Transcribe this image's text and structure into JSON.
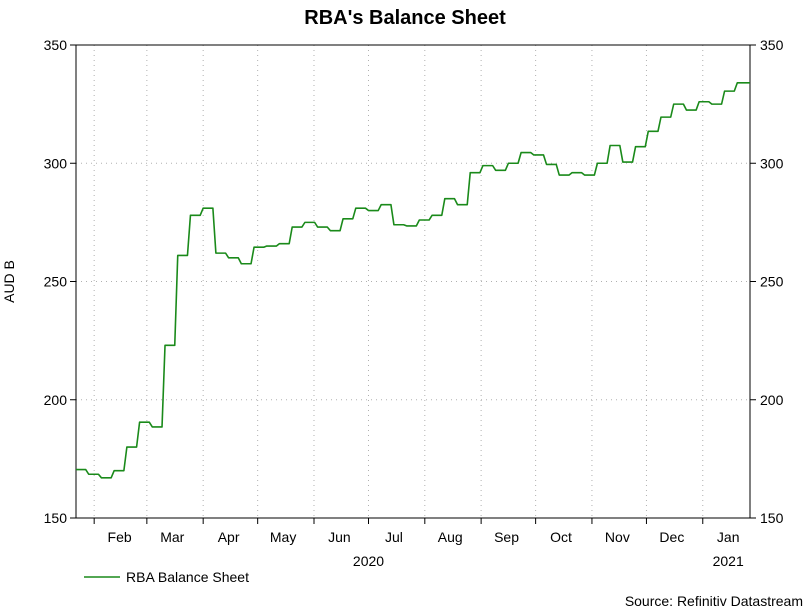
{
  "chart_data": {
    "type": "line",
    "title": "RBA's Balance Sheet",
    "ylabel": "AUD B",
    "ylim": [
      150,
      350
    ],
    "yticks": [
      150,
      200,
      250,
      300,
      350
    ],
    "xlim": [
      "2020-01-22",
      "2021-01-27"
    ],
    "month_ticks": [
      {
        "label": "Feb",
        "date": "2020-02-15"
      },
      {
        "label": "Mar",
        "date": "2020-03-15"
      },
      {
        "label": "Apr",
        "date": "2020-04-15"
      },
      {
        "label": "May",
        "date": "2020-05-15"
      },
      {
        "label": "Jun",
        "date": "2020-06-15"
      },
      {
        "label": "Jul",
        "date": "2020-07-15"
      },
      {
        "label": "Aug",
        "date": "2020-08-15"
      },
      {
        "label": "Sep",
        "date": "2020-09-15"
      },
      {
        "label": "Oct",
        "date": "2020-10-15"
      },
      {
        "label": "Nov",
        "date": "2020-11-15"
      },
      {
        "label": "Dec",
        "date": "2020-12-15"
      },
      {
        "label": "Jan",
        "date": "2021-01-15"
      }
    ],
    "year_labels": [
      {
        "label": "2020",
        "date": "2020-07-01"
      },
      {
        "label": "2021",
        "date": "2021-01-15"
      }
    ],
    "grid": true,
    "legend_position": "bottom-left",
    "colors": {
      "line": "#1a8a1a",
      "grid": "#b0b0b0",
      "axis": "#000000"
    },
    "series": [
      {
        "name": "RBA Balance Sheet",
        "mode": "step",
        "x": [
          "2020-01-22",
          "2020-01-29",
          "2020-02-05",
          "2020-02-12",
          "2020-02-19",
          "2020-02-26",
          "2020-03-04",
          "2020-03-11",
          "2020-03-18",
          "2020-03-25",
          "2020-04-01",
          "2020-04-08",
          "2020-04-15",
          "2020-04-22",
          "2020-04-29",
          "2020-05-06",
          "2020-05-13",
          "2020-05-20",
          "2020-05-27",
          "2020-06-03",
          "2020-06-10",
          "2020-06-17",
          "2020-06-24",
          "2020-07-01",
          "2020-07-08",
          "2020-07-15",
          "2020-07-22",
          "2020-07-29",
          "2020-08-05",
          "2020-08-12",
          "2020-08-19",
          "2020-08-26",
          "2020-09-02",
          "2020-09-09",
          "2020-09-16",
          "2020-09-23",
          "2020-09-30",
          "2020-10-07",
          "2020-10-14",
          "2020-10-21",
          "2020-10-28",
          "2020-11-04",
          "2020-11-11",
          "2020-11-18",
          "2020-11-25",
          "2020-12-02",
          "2020-12-09",
          "2020-12-16",
          "2020-12-23",
          "2020-12-30",
          "2021-01-06",
          "2021-01-13",
          "2021-01-20",
          "2021-01-26"
        ],
        "values": [
          170.5,
          168.5,
          167,
          170,
          180,
          190.5,
          188.5,
          223,
          261,
          278,
          281,
          262,
          260,
          257.5,
          264.5,
          265,
          266,
          273,
          275,
          273,
          271.5,
          276.5,
          281,
          280,
          282.5,
          274,
          273.5,
          276,
          278,
          285,
          282.5,
          296,
          299,
          297,
          300,
          304.5,
          303.5,
          299.5,
          295,
          296,
          295,
          300,
          307.5,
          300.5,
          307,
          313.5,
          319.5,
          325,
          322.5,
          326,
          325,
          330.5,
          334,
          334
        ]
      }
    ]
  },
  "source_text": "Source: Refinitiv Datastream"
}
